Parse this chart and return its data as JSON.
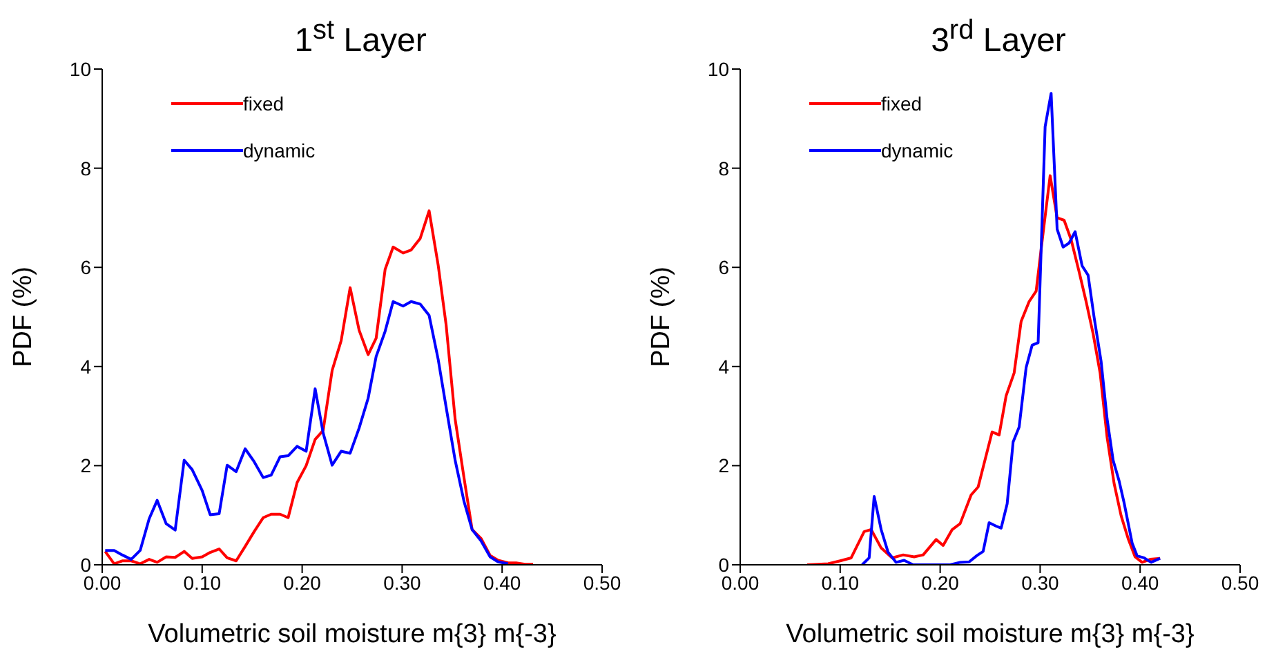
{
  "chart_data": [
    {
      "type": "line",
      "title": "1$^{st}$ Layer",
      "xlabel": "Volumetric soil moisture m{3} m{-3}",
      "ylabel": "PDF (%)",
      "xlim": [
        0,
        0.5
      ],
      "xticks": [
        {
          "value": 0,
          "label": "0.00"
        },
        {
          "value": 0.1,
          "label": "0.10"
        },
        {
          "value": 0.2,
          "label": "0.20"
        },
        {
          "value": 0.3,
          "label": "0.30"
        },
        {
          "value": 0.4,
          "label": "0.40"
        },
        {
          "value": 0.5,
          "label": "0.50"
        }
      ],
      "ylim": [
        0,
        10
      ],
      "yticks": [
        0,
        2,
        4,
        6,
        8,
        10
      ],
      "legend": "top left",
      "series": [
        {
          "name": "fixed",
          "color": "#ff0000",
          "x": [
            0.003,
            0.012,
            0.02,
            0.029,
            0.038,
            0.047,
            0.055,
            0.064,
            0.073,
            0.082,
            0.09,
            0.1,
            0.108,
            0.117,
            0.125,
            0.134,
            0.143,
            0.152,
            0.161,
            0.169,
            0.178,
            0.186,
            0.195,
            0.204,
            0.213,
            0.221,
            0.23,
            0.239,
            0.248,
            0.257,
            0.266,
            0.274,
            0.283,
            0.291,
            0.301,
            0.309,
            0.318,
            0.327,
            0.336,
            0.344,
            0.353,
            0.362,
            0.37,
            0.379,
            0.388,
            0.396,
            0.406,
            0.414,
            0.423,
            0.431
          ],
          "values": [
            0.27,
            0.02,
            0.08,
            0.08,
            0.02,
            0.11,
            0.05,
            0.16,
            0.15,
            0.27,
            0.13,
            0.16,
            0.25,
            0.32,
            0.14,
            0.08,
            0.37,
            0.67,
            0.95,
            1.02,
            1.02,
            0.95,
            1.66,
            2.0,
            2.53,
            2.71,
            3.92,
            4.52,
            5.59,
            4.73,
            4.24,
            4.57,
            5.96,
            6.41,
            6.29,
            6.35,
            6.58,
            7.14,
            6.05,
            4.84,
            2.94,
            1.74,
            0.71,
            0.53,
            0.19,
            0.09,
            0.04,
            0.04,
            0.01,
            0.01
          ]
        },
        {
          "name": "dynamic",
          "color": "#0000ff",
          "x": [
            0.003,
            0.012,
            0.02,
            0.029,
            0.038,
            0.047,
            0.055,
            0.064,
            0.073,
            0.082,
            0.09,
            0.1,
            0.108,
            0.117,
            0.125,
            0.134,
            0.143,
            0.152,
            0.161,
            0.169,
            0.178,
            0.186,
            0.195,
            0.204,
            0.213,
            0.221,
            0.23,
            0.239,
            0.248,
            0.257,
            0.266,
            0.274,
            0.283,
            0.291,
            0.301,
            0.309,
            0.318,
            0.327,
            0.336,
            0.344,
            0.353,
            0.362,
            0.37,
            0.379,
            0.388,
            0.396,
            0.406
          ],
          "values": [
            0.29,
            0.29,
            0.2,
            0.11,
            0.29,
            0.93,
            1.3,
            0.83,
            0.7,
            2.11,
            1.92,
            1.5,
            1.01,
            1.03,
            2.01,
            1.88,
            2.34,
            2.08,
            1.76,
            1.81,
            2.18,
            2.2,
            2.39,
            2.29,
            3.55,
            2.66,
            2.01,
            2.29,
            2.25,
            2.76,
            3.36,
            4.2,
            4.71,
            5.31,
            5.22,
            5.31,
            5.26,
            5.03,
            4.15,
            3.18,
            2.11,
            1.27,
            0.71,
            0.48,
            0.16,
            0.06,
            0.02
          ]
        }
      ]
    },
    {
      "type": "line",
      "title": "3$^{rd}$  Layer",
      "xlabel": "Volumetric soil moisture m{3} m{-3}",
      "ylabel": "PDF (%)",
      "xlim": [
        0,
        0.5
      ],
      "xticks": [
        {
          "value": 0,
          "label": "0.00"
        },
        {
          "value": 0.1,
          "label": "0.10"
        },
        {
          "value": 0.2,
          "label": "0.20"
        },
        {
          "value": 0.3,
          "label": "0.30"
        },
        {
          "value": 0.4,
          "label": "0.40"
        },
        {
          "value": 0.5,
          "label": "0.50"
        }
      ],
      "ylim": [
        0,
        10
      ],
      "yticks": [
        0,
        2,
        4,
        6,
        8,
        10
      ],
      "legend": "top left",
      "series": [
        {
          "name": "fixed",
          "color": "#ff0000",
          "x": [
            0.067,
            0.088,
            0.1,
            0.111,
            0.124,
            0.131,
            0.141,
            0.152,
            0.163,
            0.174,
            0.183,
            0.196,
            0.203,
            0.212,
            0.22,
            0.231,
            0.238,
            0.252,
            0.259,
            0.266,
            0.274,
            0.281,
            0.289,
            0.296,
            0.303,
            0.31,
            0.317,
            0.324,
            0.331,
            0.339,
            0.346,
            0.353,
            0.36,
            0.367,
            0.374,
            0.381,
            0.388,
            0.395,
            0.402,
            0.41,
            0.42
          ],
          "values": [
            0,
            0.02,
            0.08,
            0.14,
            0.67,
            0.71,
            0.34,
            0.14,
            0.2,
            0.16,
            0.2,
            0.51,
            0.39,
            0.71,
            0.83,
            1.41,
            1.57,
            2.68,
            2.62,
            3.41,
            3.87,
            4.91,
            5.31,
            5.52,
            6.7,
            7.85,
            7.0,
            6.95,
            6.56,
            5.91,
            5.31,
            4.66,
            3.87,
            2.57,
            1.64,
            0.99,
            0.53,
            0.16,
            0.05,
            0.11,
            0.13
          ]
        },
        {
          "name": "dynamic",
          "color": "#0000ff",
          "x": [
            0.122,
            0.129,
            0.134,
            0.141,
            0.148,
            0.156,
            0.164,
            0.173,
            0.19,
            0.21,
            0.22,
            0.229,
            0.237,
            0.243,
            0.249,
            0.256,
            0.261,
            0.267,
            0.273,
            0.279,
            0.286,
            0.292,
            0.298,
            0.305,
            0.311,
            0.317,
            0.323,
            0.329,
            0.335,
            0.342,
            0.348,
            0.354,
            0.361,
            0.367,
            0.373,
            0.379,
            0.384,
            0.392,
            0.397,
            0.404,
            0.411,
            0.42
          ],
          "values": [
            0,
            0.14,
            1.38,
            0.71,
            0.25,
            0.05,
            0.09,
            0,
            0,
            0,
            0.05,
            0.06,
            0.19,
            0.27,
            0.85,
            0.78,
            0.74,
            1.23,
            2.48,
            2.78,
            3.98,
            4.43,
            4.48,
            8.84,
            9.51,
            6.77,
            6.41,
            6.49,
            6.72,
            6.03,
            5.84,
            4.99,
            4.1,
            2.94,
            2.11,
            1.69,
            1.25,
            0.44,
            0.18,
            0.14,
            0.05,
            0.13
          ]
        }
      ]
    }
  ]
}
